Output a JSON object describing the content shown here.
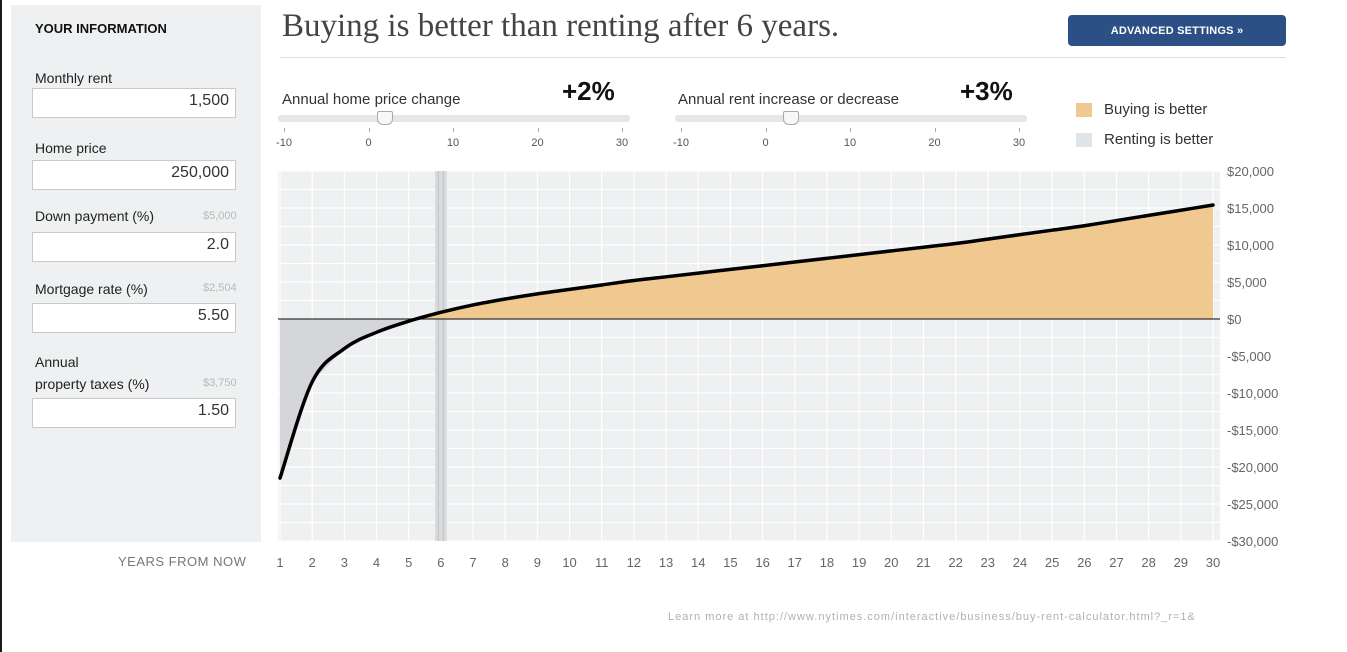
{
  "sidebar": {
    "heading": "YOUR INFORMATION",
    "fields": [
      {
        "label": "Monthly rent",
        "value": "1,500",
        "note": ""
      },
      {
        "label": "Home price",
        "value": "250,000",
        "note": ""
      },
      {
        "label": "Down payment (%)",
        "value": "2.0",
        "note": "$5,000"
      },
      {
        "label": "Mortgage rate (%)",
        "value": "5.50",
        "note": "$2,504"
      },
      {
        "label_line1": "Annual",
        "label_line2": "property taxes (%)",
        "value": "1.50",
        "note": "$3,750"
      }
    ]
  },
  "header": {
    "headline": "Buying is better than renting after 6 years.",
    "advanced_button": "ADVANCED SETTINGS »"
  },
  "sliders": [
    {
      "label": "Annual home price change",
      "value_text": "+2%",
      "value": 2,
      "min": -10,
      "max": 30,
      "ticks": [
        "-10",
        "0",
        "10",
        "20",
        "30"
      ]
    },
    {
      "label": "Annual rent increase or decrease",
      "value_text": "+3%",
      "value": 3,
      "min": -10,
      "max": 30,
      "ticks": [
        "-10",
        "0",
        "10",
        "20",
        "30"
      ]
    }
  ],
  "legend": [
    {
      "label": "Buying is better",
      "color": "#f0c990"
    },
    {
      "label": "Renting is better",
      "color": "#dde4ea"
    }
  ],
  "chart_data": {
    "type": "area",
    "x_axis_label": "YEARS FROM NOW",
    "x": [
      1,
      2,
      3,
      4,
      5,
      6,
      7,
      8,
      9,
      10,
      11,
      12,
      13,
      14,
      15,
      16,
      17,
      18,
      19,
      20,
      21,
      22,
      23,
      24,
      25,
      26,
      27,
      28,
      29,
      30
    ],
    "series": [
      {
        "values": [
          -21500,
          -8500,
          -4000,
          -1800,
          -300,
          900,
          1900,
          2700,
          3400,
          4000,
          4600,
          5200,
          5700,
          6200,
          6700,
          7200,
          7700,
          8200,
          8700,
          9200,
          9700,
          10200,
          10800,
          11400,
          12000,
          12600,
          13300,
          14000,
          14700,
          15400
        ]
      }
    ],
    "ylim": [
      -30000,
      20000
    ],
    "y_ticks": [
      20000,
      15000,
      10000,
      5000,
      0,
      -5000,
      -10000,
      -15000,
      -20000,
      -25000,
      -30000
    ],
    "y_tick_labels": [
      "$20,000",
      "$15,000",
      "$10,000",
      "$5,000",
      "$0",
      "-$5,000",
      "-$10,000",
      "-$15,000",
      "-$20,000",
      "-$25,000",
      "-$30,000"
    ],
    "breakeven_year": 6,
    "colors": {
      "positive": "#f0c990",
      "negative": "#d4d6d9",
      "line": "#000000"
    }
  },
  "footer": {
    "link_text": "Learn more at http://www.nytimes.com/interactive/business/buy-rent-calculator.html?_r=1&"
  }
}
